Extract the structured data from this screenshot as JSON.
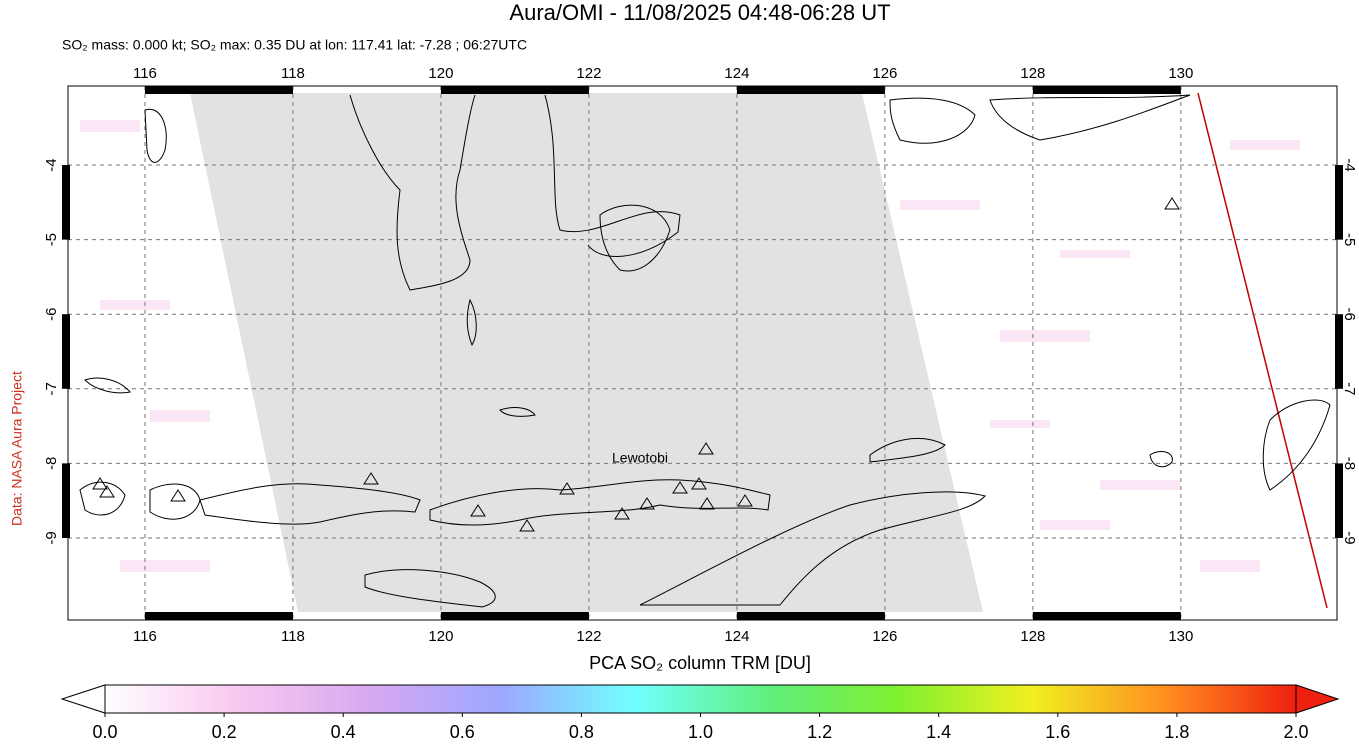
{
  "title": "Aura/OMI - 11/08/2025 04:48-06:28 UT",
  "subtitle": "SO₂ mass: 0.000 kt; SO₂ max: 0.35 DU at lon: 117.41 lat: -7.28 ; 06:27UTC",
  "credit": "Data: NASA Aura Project",
  "map": {
    "xlim": [
      114.96,
      132.11
    ],
    "ylim": [
      -10.1,
      -2.94
    ],
    "xticks": [
      116,
      118,
      120,
      122,
      124,
      126,
      128,
      130
    ],
    "yticks": [
      -4,
      -5,
      -6,
      -7,
      -8,
      -9
    ],
    "grid": true,
    "annotation": "Lewotobi"
  },
  "colorbar": {
    "label": "PCA SO₂ column TRM [DU]",
    "lim": [
      0,
      2
    ],
    "ticks": [
      {
        "value": 0,
        "label": "0.0"
      },
      0.2,
      0.4,
      0.6,
      0.8,
      {
        "value": 1,
        "label": "1.0"
      },
      1.2,
      1.4,
      1.6,
      1.8,
      {
        "value": 2,
        "label": "2.0"
      }
    ],
    "colors": [
      "#ffffff",
      "#f8c8f0",
      "#d8a8f0",
      "#9ca8ff",
      "#70ffff",
      "#60f080",
      "#80f030",
      "#f0f020",
      "#ff9020",
      "#f02010"
    ]
  }
}
